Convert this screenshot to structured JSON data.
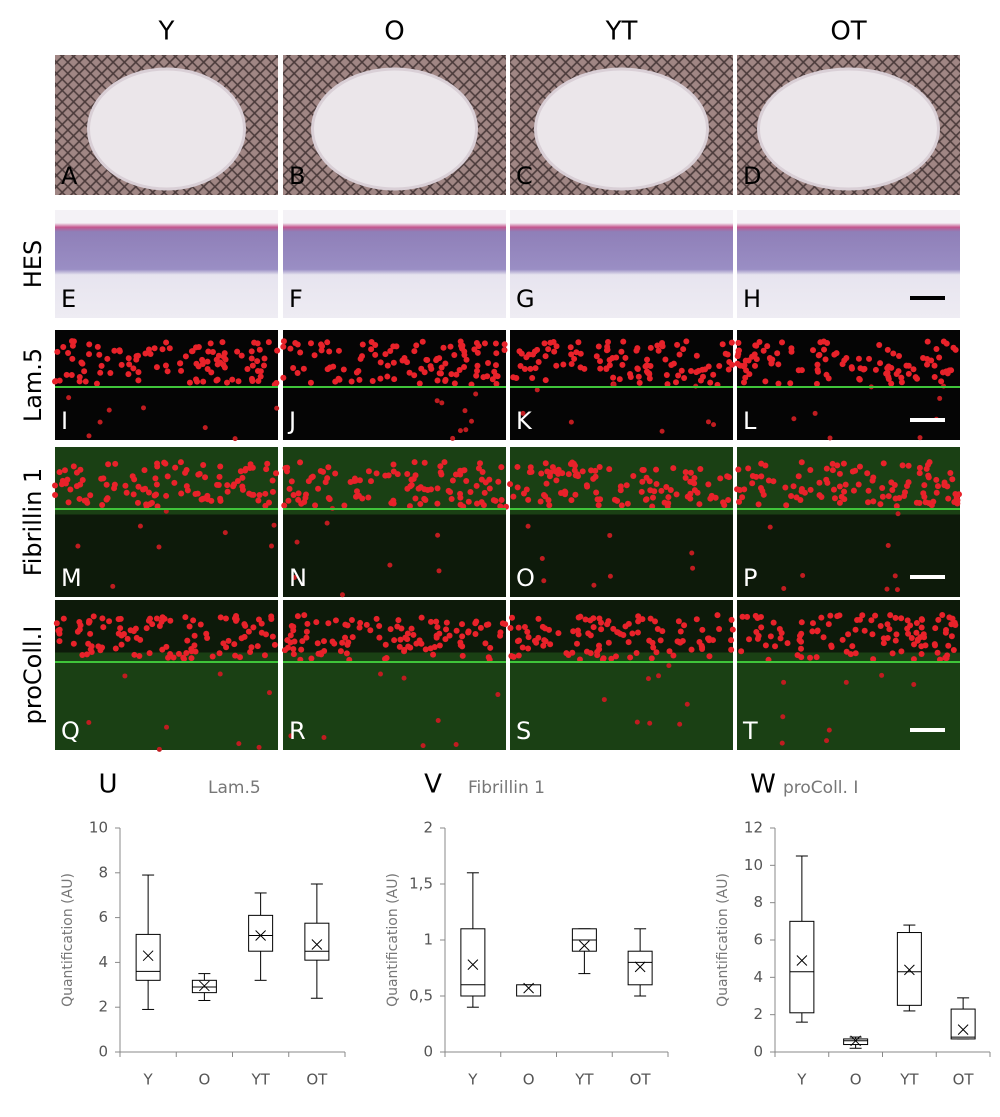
{
  "columns": [
    "Y",
    "O",
    "YT",
    "OT"
  ],
  "rows": [
    "HES",
    "Lam.5",
    "Fibrillin 1",
    "proColl.I"
  ],
  "panels": [
    "A",
    "B",
    "C",
    "D",
    "E",
    "F",
    "G",
    "H",
    "I",
    "J",
    "K",
    "L",
    "M",
    "N",
    "O",
    "P",
    "Q",
    "R",
    "S",
    "T"
  ],
  "chart_data": [
    {
      "type": "box",
      "panel": "U",
      "title": "Lam.5",
      "y_label": "Quantification (AU)",
      "categories": [
        "Y",
        "O",
        "YT",
        "OT"
      ],
      "min": [
        1.9,
        2.3,
        3.2,
        2.4
      ],
      "q1": [
        3.2,
        2.65,
        4.5,
        4.1
      ],
      "median": [
        3.6,
        2.9,
        5.2,
        4.5
      ],
      "q3": [
        5.25,
        3.2,
        6.1,
        5.75
      ],
      "max": [
        7.9,
        3.5,
        7.1,
        7.5
      ],
      "mean": [
        4.3,
        2.95,
        5.2,
        4.8
      ],
      "ylim": [
        0,
        10
      ],
      "yticks": [
        0,
        2,
        4,
        6,
        8,
        10
      ]
    },
    {
      "type": "box",
      "panel": "V",
      "title": "Fibrillin 1",
      "y_label": "Quantification (AU)",
      "categories": [
        "Y",
        "O",
        "YT",
        "OT"
      ],
      "min": [
        0.4,
        0.5,
        0.7,
        0.5
      ],
      "q1": [
        0.5,
        0.5,
        0.9,
        0.6
      ],
      "median": [
        0.6,
        0.5,
        1.0,
        0.8
      ],
      "q3": [
        1.1,
        0.6,
        1.1,
        0.9
      ],
      "max": [
        1.6,
        0.6,
        1.1,
        1.1
      ],
      "mean": [
        0.78,
        0.57,
        0.95,
        0.76
      ],
      "ylim": [
        0,
        2
      ],
      "yticks": [
        0,
        {
          "value": 0.5,
          "label": "0,5"
        },
        1,
        {
          "value": 1.5,
          "label": "1,5"
        },
        2
      ]
    },
    {
      "type": "box",
      "panel": "W",
      "title": "proColl. I",
      "y_label": "Quantification (AU)",
      "categories": [
        "Y",
        "O",
        "YT",
        "OT"
      ],
      "min": [
        1.6,
        0.2,
        2.2,
        0.7
      ],
      "q1": [
        2.1,
        0.4,
        2.5,
        0.7
      ],
      "median": [
        4.3,
        0.6,
        4.3,
        0.8
      ],
      "q3": [
        7.0,
        0.7,
        6.4,
        2.3
      ],
      "max": [
        10.5,
        0.8,
        6.8,
        2.9
      ],
      "mean": [
        4.9,
        0.6,
        4.4,
        1.2
      ],
      "ylim": [
        0,
        12
      ],
      "yticks": [
        0,
        2,
        4,
        6,
        8,
        10,
        12
      ]
    }
  ]
}
